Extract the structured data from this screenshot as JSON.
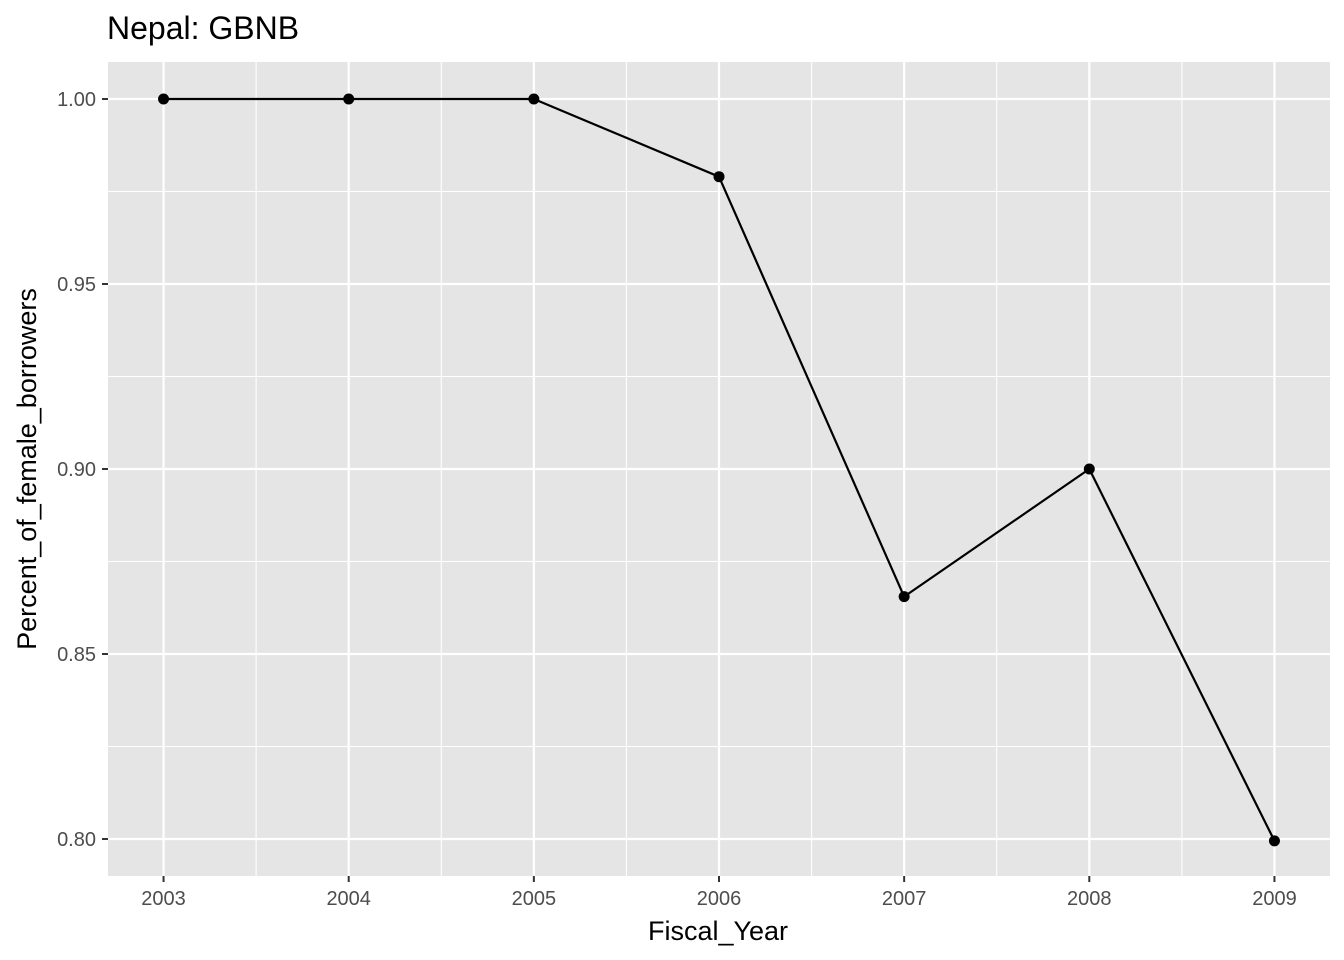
{
  "chart_data": {
    "type": "line",
    "title": "Nepal:  GBNB",
    "xlabel": "Fiscal_Year",
    "ylabel": "Percent_of_female_borrowers",
    "x": [
      2003,
      2004,
      2005,
      2006,
      2007,
      2008,
      2009
    ],
    "series": [
      {
        "values": [
          1.0,
          1.0,
          1.0,
          0.979,
          0.8655,
          0.9,
          0.7995
        ]
      }
    ],
    "xticks": [
      "2003",
      "2004",
      "2005",
      "2006",
      "2007",
      "2008",
      "2009"
    ],
    "yticks": [
      "0.80",
      "0.85",
      "0.90",
      "0.95",
      "1.00"
    ],
    "ytick_values": [
      0.8,
      0.85,
      0.9,
      0.95,
      1.0
    ],
    "xlim": [
      2002.7,
      2009.3
    ],
    "ylim": [
      0.79,
      1.01
    ],
    "grid": true,
    "colors": {
      "panel": "#e5e5e5",
      "grid": "#ffffff",
      "line": "#000000",
      "point": "#000000"
    }
  }
}
